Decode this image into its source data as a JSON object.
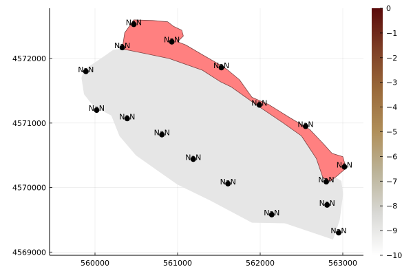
{
  "chart_data": {
    "type": "scatter",
    "title": "",
    "xlabel": "",
    "ylabel": "",
    "xlim": [
      559450,
      563250
    ],
    "ylim": [
      4568950,
      4572780
    ],
    "xticks": [
      560000,
      561000,
      562000,
      563000
    ],
    "yticks": [
      4569000,
      4570000,
      4571000,
      4572000
    ],
    "grid": true,
    "legend": "none",
    "regions": [
      {
        "name": "",
        "fill": "#e6e6e6",
        "stroke": "#e6e6e6",
        "outline": [
          [
            560220,
            4572130
          ],
          [
            560330,
            4572150
          ],
          [
            560900,
            4572000
          ],
          [
            561300,
            4571820
          ],
          [
            561650,
            4571560
          ],
          [
            561980,
            4571260
          ],
          [
            562280,
            4571000
          ],
          [
            562500,
            4570800
          ],
          [
            562700,
            4570500
          ],
          [
            562850,
            4570200
          ],
          [
            562980,
            4570100
          ],
          [
            563000,
            4569900
          ],
          [
            562960,
            4569500
          ],
          [
            562880,
            4569200
          ],
          [
            562300,
            4569450
          ],
          [
            561900,
            4569460
          ],
          [
            561400,
            4569800
          ],
          [
            561000,
            4570050
          ],
          [
            560500,
            4570500
          ],
          [
            560300,
            4570800
          ],
          [
            560200,
            4571120
          ],
          [
            559980,
            4571270
          ],
          [
            559870,
            4571450
          ],
          [
            559840,
            4571700
          ],
          [
            559870,
            4571830
          ],
          [
            559960,
            4571900
          ],
          [
            560120,
            4572040
          ]
        ]
      },
      {
        "name": "",
        "fill": "#ff8080",
        "stroke": "#7a4444",
        "outline": [
          [
            560330,
            4572150
          ],
          [
            560360,
            4572400
          ],
          [
            560470,
            4572600
          ],
          [
            560700,
            4572590
          ],
          [
            560880,
            4572570
          ],
          [
            560950,
            4572500
          ],
          [
            561050,
            4572440
          ],
          [
            561070,
            4572350
          ],
          [
            561000,
            4572260
          ],
          [
            561100,
            4572210
          ],
          [
            561300,
            4572060
          ],
          [
            561450,
            4571950
          ],
          [
            561600,
            4571830
          ],
          [
            561750,
            4571670
          ],
          [
            561900,
            4571400
          ],
          [
            562100,
            4571290
          ],
          [
            562350,
            4571090
          ],
          [
            562600,
            4570900
          ],
          [
            562750,
            4570700
          ],
          [
            562870,
            4570530
          ],
          [
            563000,
            4570480
          ],
          [
            563040,
            4570300
          ],
          [
            562930,
            4570180
          ],
          [
            562850,
            4570100
          ],
          [
            562760,
            4570150
          ],
          [
            562680,
            4570450
          ],
          [
            562500,
            4570800
          ],
          [
            562280,
            4571000
          ],
          [
            561980,
            4571260
          ],
          [
            561650,
            4571560
          ],
          [
            561520,
            4571640
          ],
          [
            561300,
            4571820
          ],
          [
            560900,
            4572000
          ],
          [
            560600,
            4572080
          ]
        ]
      }
    ],
    "points": {
      "x": [
        560470,
        560330,
        560930,
        561530,
        561990,
        562550,
        563020,
        562800,
        562810,
        562950,
        562140,
        561610,
        561190,
        560810,
        560390,
        560020,
        559890
      ],
      "y": [
        4572530,
        4572170,
        4572260,
        4571860,
        4571280,
        4570950,
        4570320,
        4570090,
        4569730,
        4569300,
        4569580,
        4570060,
        4570440,
        4570820,
        4571070,
        4571200,
        4571800
      ],
      "labels": [
        "NaN",
        "NaN",
        "NaN",
        "NaN",
        "NaN",
        "NaN",
        "NaN",
        "NaN",
        "NaN",
        "NaN",
        "NaN",
        "NaN",
        "NaN",
        "NaN",
        "NaN",
        "NaN",
        "NaN"
      ],
      "color": "#000000"
    },
    "colorbar": {
      "min": -10,
      "max": 0,
      "ticks": [
        0,
        -1,
        -2,
        -3,
        -4,
        -5,
        -6,
        -7,
        -8,
        -9,
        -10
      ],
      "tick_labels": [
        "0",
        "−1",
        "−2",
        "−3",
        "−4",
        "−5",
        "−6",
        "−7",
        "−8",
        "−9",
        "−10"
      ],
      "colormap": [
        "#ffffff",
        "#d9d9d6",
        "#bcb49a",
        "#b08f5a",
        "#9a6a3a",
        "#7e3f26",
        "#5a0a0a"
      ]
    }
  }
}
